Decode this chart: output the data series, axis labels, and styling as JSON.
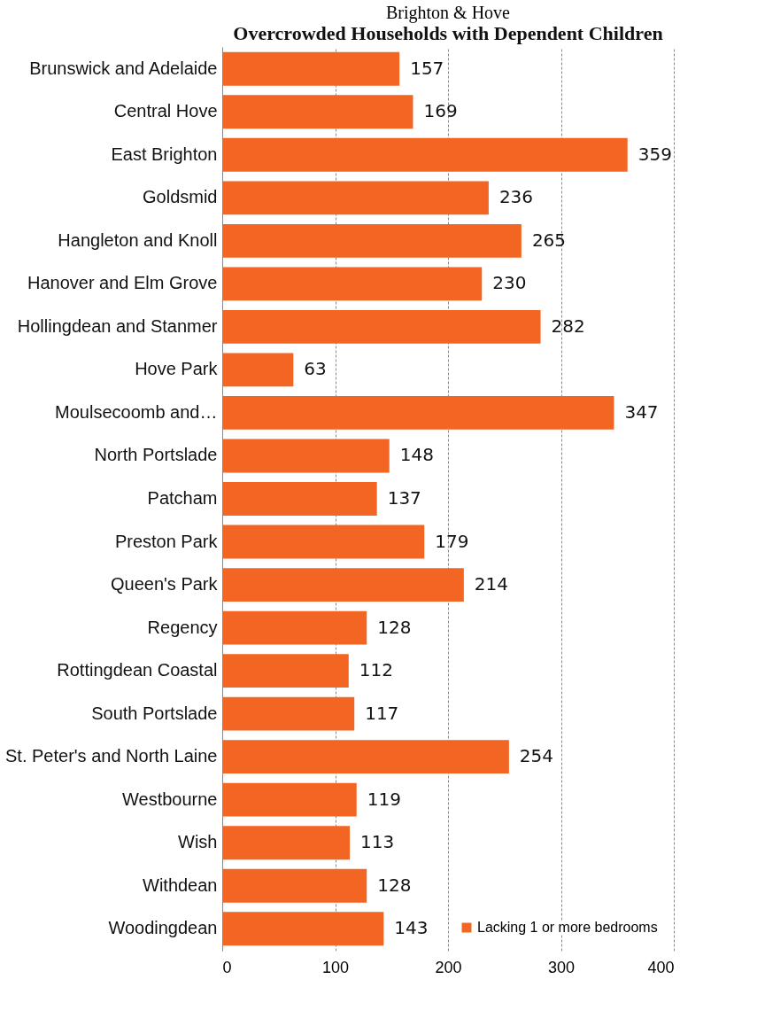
{
  "chart_data": {
    "type": "bar",
    "orientation": "horizontal",
    "title": "Brighton & Hove",
    "subtitle": "Overcrowded Households with Dependent Children",
    "categories": [
      "Brunswick and Adelaide",
      "Central Hove",
      "East Brighton",
      "Goldsmid",
      "Hangleton and Knoll",
      "Hanover and Elm Grove",
      "Hollingdean and Stanmer",
      "Hove Park",
      "Moulsecoomb and…",
      "North Portslade",
      "Patcham",
      "Preston Park",
      "Queen's Park",
      "Regency",
      "Rottingdean Coastal",
      "South Portslade",
      "St. Peter's and North Laine",
      "Westbourne",
      "Wish",
      "Withdean",
      "Woodingdean"
    ],
    "series": [
      {
        "name": "Lacking 1 or more bedrooms",
        "color": "#f26522",
        "values": [
          157,
          169,
          359,
          236,
          265,
          230,
          282,
          63,
          347,
          148,
          137,
          179,
          214,
          128,
          112,
          117,
          254,
          119,
          113,
          128,
          143
        ]
      }
    ],
    "xlim": [
      0,
      400
    ],
    "xticks": [
      0,
      100,
      200,
      300,
      400
    ],
    "grid": "x",
    "legend": "bottom right",
    "data_labels": true
  }
}
